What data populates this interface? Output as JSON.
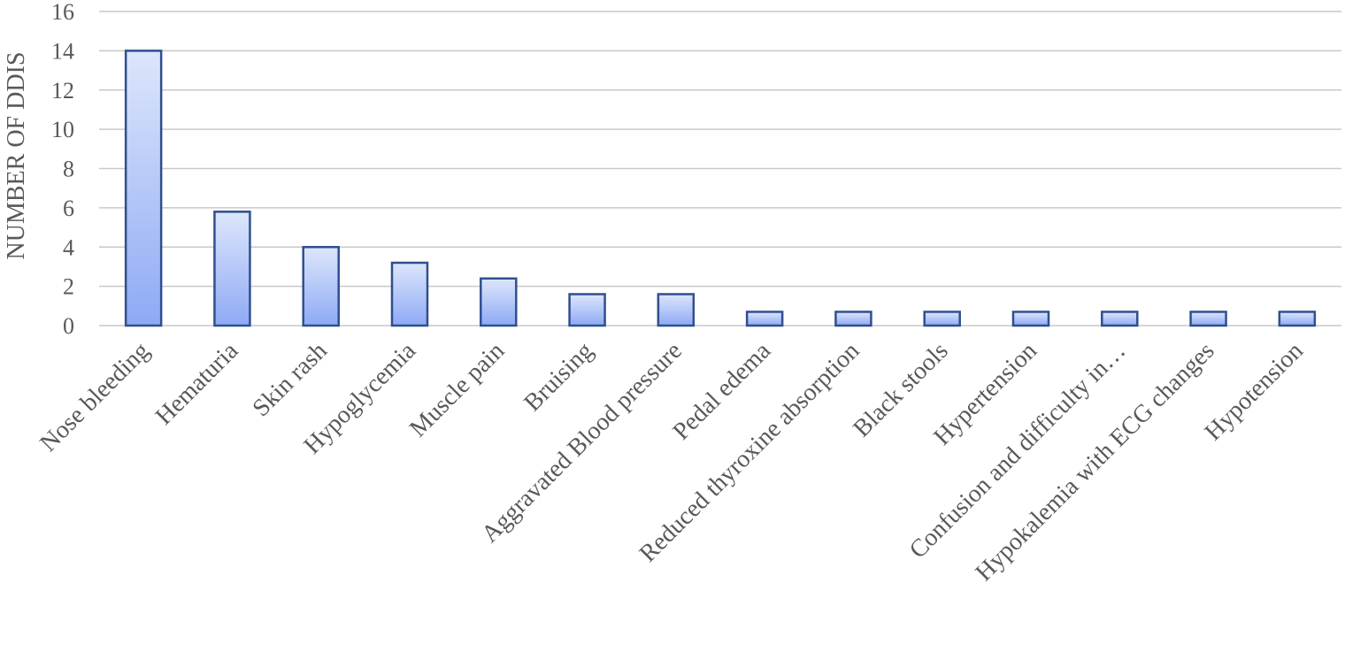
{
  "chart_data": {
    "type": "bar",
    "title": "",
    "xlabel": "",
    "ylabel": "NUMBER OF DDIS",
    "ylim": [
      0,
      16
    ],
    "yticks": [
      0,
      2,
      4,
      6,
      8,
      10,
      12,
      14,
      16
    ],
    "grid": true,
    "categories": [
      "Nose bleeding",
      "Hematuria",
      "Skin rash",
      "Hypoglycemia",
      "Muscle pain",
      "Bruising",
      "Aggravated Blood pressure",
      "Pedal edema",
      "Reduced thyroxine absorption",
      "Black stools",
      "Hypertension",
      "Confusion and difficulty in…",
      "Hypokalemia with ECG changes",
      "Hypotension"
    ],
    "values": [
      14,
      5.8,
      4,
      3.2,
      2.4,
      1.6,
      1.6,
      0.7,
      0.7,
      0.7,
      0.7,
      0.7,
      0.7,
      0.7
    ],
    "colors": {
      "bar_top": "#dde6fb",
      "bar_bottom": "#8eaaf5",
      "bar_border": "#2f4f8f",
      "grid": "#c9c9c9",
      "text": "#595959"
    }
  }
}
